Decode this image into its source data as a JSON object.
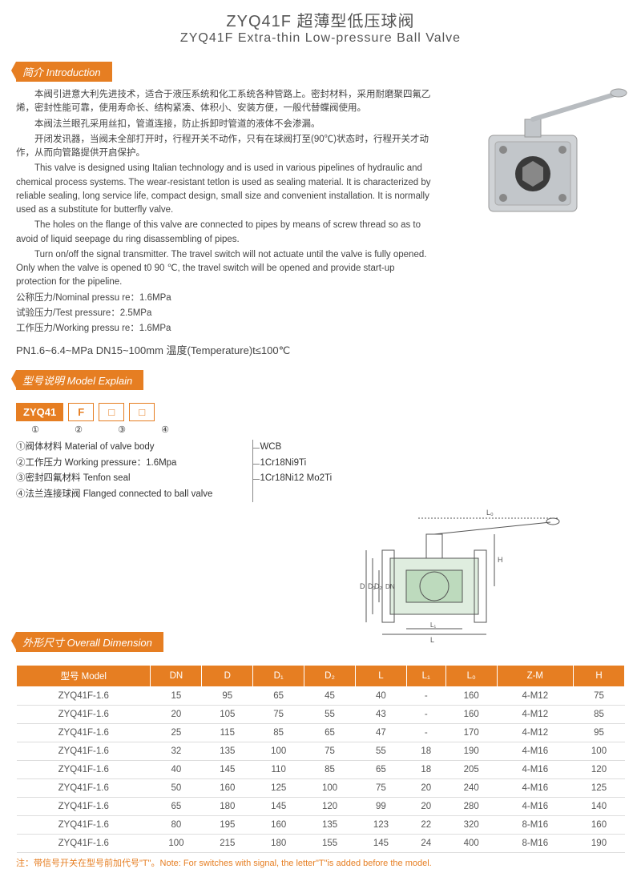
{
  "title": {
    "cn": "ZYQ41F 超薄型低压球阀",
    "en": "ZYQ41F Extra-thin Low-pressure Ball Valve"
  },
  "sections": {
    "intro": "简介 Introduction",
    "model": "型号说明 Model Explain",
    "dimension": "外形尺寸 Overall Dimension"
  },
  "intro_paragraphs": [
    "本阀引进意大利先进技术，适合于液压系统和化工系统各种管路上。密封材料，采用耐磨聚四氟乙烯，密封性能可靠，使用寿命长、结构紧凑、体积小、安装方便，一般代替蝶阀使用。",
    "本阀法兰眼孔采用丝扣，管道连接，防止拆卸时管道的液体不会渗漏。",
    "开闭发讯器，当阀未全部打开时，行程开关不动作，只有在球阀打至(90℃)状态时，行程开关才动作，从而向管路提供开启保护。",
    "This valve is designed using Italian technology and is used in various pipelines of hydraulic and chemical process systems. The wear-resistant tetlon is used as sealing material. It is characterized by reliable sealing, long service life, compact design, small size and convenient installation. It is normally used as a substitute for butterfly valve.",
    "The holes on the flange of this valve are connected to pipes by means of screw thread so as to avoid of liquid seepage du ring disassembling of pipes.",
    "Turn on/off the signal transmitter. The travel switch will not actuate until the valve is fully opened. Only when the valve is opened t0 90 ℃, the travel switch will be opened and provide start-up protection for the pipeline."
  ],
  "pressure_lines": [
    "公称压力/Nominal pressu re：1.6MPa",
    "试验压力/Test pressure：2.5MPa",
    "工作压力/Working pressu re：1.6MPa"
  ],
  "specs_line": "PN1.6~6.4~MPa  DN15~100mm   温度(Temperature)t≤100℃",
  "model_boxes": [
    "ZYQ41",
    "F",
    "□",
    "□"
  ],
  "model_nums": [
    "①",
    "②",
    "③",
    "④"
  ],
  "model_list": [
    "①阀体材料 Material of valve body",
    "②工作压力 Working pressure：1.6Mpa",
    "③密封四氟材料 Tenfon seal",
    "④法兰连接球阀 Flanged connected to ball valve"
  ],
  "materials": [
    "WCB",
    "1Cr18Ni9Ti",
    "1Cr18Ni12 Mo2Ti"
  ],
  "table": {
    "headers": [
      "型号 Model",
      "DN",
      "D",
      "D₁",
      "D₂",
      "L",
      "L₁",
      "L₀",
      "Z-M",
      "H"
    ],
    "rows": [
      [
        "ZYQ41F-1.6",
        "15",
        "95",
        "65",
        "45",
        "40",
        "-",
        "160",
        "4-M12",
        "75"
      ],
      [
        "ZYQ41F-1.6",
        "20",
        "105",
        "75",
        "55",
        "43",
        "-",
        "160",
        "4-M12",
        "85"
      ],
      [
        "ZYQ41F-1.6",
        "25",
        "115",
        "85",
        "65",
        "47",
        "-",
        "170",
        "4-M12",
        "95"
      ],
      [
        "ZYQ41F-1.6",
        "32",
        "135",
        "100",
        "75",
        "55",
        "18",
        "190",
        "4-M16",
        "100"
      ],
      [
        "ZYQ41F-1.6",
        "40",
        "145",
        "110",
        "85",
        "65",
        "18",
        "205",
        "4-M16",
        "120"
      ],
      [
        "ZYQ41F-1.6",
        "50",
        "160",
        "125",
        "100",
        "75",
        "20",
        "240",
        "4-M16",
        "125"
      ],
      [
        "ZYQ41F-1.6",
        "65",
        "180",
        "145",
        "120",
        "99",
        "20",
        "280",
        "4-M16",
        "140"
      ],
      [
        "ZYQ41F-1.6",
        "80",
        "195",
        "160",
        "135",
        "123",
        "22",
        "320",
        "8-M16",
        "160"
      ],
      [
        "ZYQ41F-1.6",
        "100",
        "215",
        "180",
        "155",
        "145",
        "24",
        "400",
        "8-M16",
        "190"
      ]
    ]
  },
  "note": "注：带信号开关在型号前加代号\"T\"。Note: For switches with signal, the letter\"T\"is added before the model.",
  "colors": {
    "accent": "#e67e22"
  }
}
